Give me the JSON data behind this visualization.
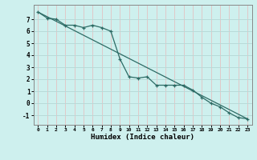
{
  "xlabel": "Humidex (Indice chaleur)",
  "background_color": "#cef0ee",
  "grid_color_h": "#b8dbd8",
  "grid_color_v": "#e0c8c8",
  "line_color": "#2d6b65",
  "xlim": [
    -0.5,
    23.5
  ],
  "ylim": [
    -1.8,
    8.2
  ],
  "yticks": [
    -1,
    0,
    1,
    2,
    3,
    4,
    5,
    6,
    7
  ],
  "xticks": [
    0,
    1,
    2,
    3,
    4,
    5,
    6,
    7,
    8,
    9,
    10,
    11,
    12,
    13,
    14,
    15,
    16,
    17,
    18,
    19,
    20,
    21,
    22,
    23
  ],
  "line1_x": [
    0,
    1,
    2,
    3,
    4,
    5,
    6,
    7,
    8,
    9,
    10,
    11,
    12,
    13,
    14,
    15,
    16,
    17,
    18,
    19,
    20,
    21,
    22,
    23
  ],
  "line1_y": [
    7.6,
    7.1,
    7.0,
    6.5,
    6.5,
    6.3,
    6.5,
    6.3,
    6.0,
    3.7,
    2.2,
    2.1,
    2.2,
    1.5,
    1.5,
    1.5,
    1.5,
    1.1,
    0.5,
    0.0,
    -0.3,
    -0.8,
    -1.2,
    -1.3
  ],
  "line2_x": [
    0,
    23
  ],
  "line2_y": [
    7.6,
    -1.3
  ]
}
